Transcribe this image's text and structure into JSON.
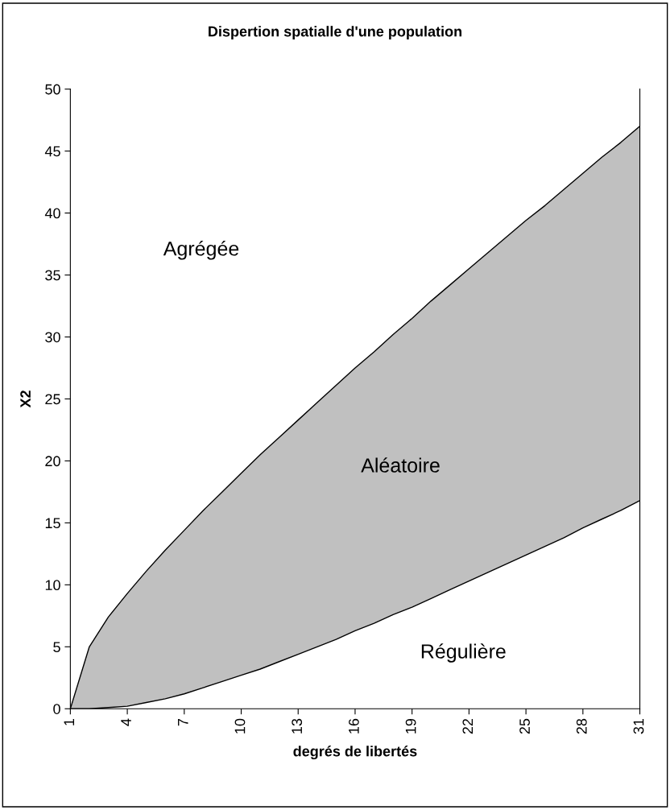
{
  "chart_data": {
    "type": "area",
    "title": "Dispertion spatialle d'une population",
    "xlabel": "degrés de libertés",
    "ylabel": "X2",
    "x": [
      1,
      2,
      3,
      4,
      5,
      6,
      7,
      8,
      9,
      10,
      11,
      12,
      13,
      14,
      15,
      16,
      17,
      18,
      19,
      20,
      21,
      22,
      23,
      24,
      25,
      26,
      27,
      28,
      29,
      30,
      31
    ],
    "series": [
      {
        "color": "#c0c0c0",
        "values": [
          0,
          5.0,
          7.4,
          9.3,
          11.1,
          12.8,
          14.4,
          16.0,
          17.5,
          19.0,
          20.5,
          21.9,
          23.3,
          24.7,
          26.1,
          27.5,
          28.8,
          30.2,
          31.5,
          32.9,
          34.2,
          35.5,
          36.8,
          38.1,
          39.4,
          40.6,
          41.9,
          43.2,
          44.5,
          45.7,
          47.0
        ]
      },
      {
        "color": "#ffffff",
        "values": [
          0,
          0.0,
          0.1,
          0.2,
          0.5,
          0.8,
          1.2,
          1.7,
          2.2,
          2.7,
          3.2,
          3.8,
          4.4,
          5.0,
          5.6,
          6.3,
          6.9,
          7.6,
          8.2,
          8.9,
          9.6,
          10.3,
          11.0,
          11.7,
          12.4,
          13.1,
          13.8,
          14.6,
          15.3,
          16.0,
          16.8
        ]
      }
    ],
    "xlim": [
      1,
      31
    ],
    "xticks": [
      1,
      4,
      7,
      10,
      13,
      16,
      19,
      22,
      25,
      28,
      31
    ],
    "ylim": [
      0,
      50
    ],
    "yticks": [
      0,
      5,
      10,
      15,
      20,
      25,
      30,
      35,
      40,
      45,
      50
    ],
    "annotations": [
      "Agrégée",
      "Aléatoire",
      "Régulière"
    ],
    "grid": false,
    "legend": false
  }
}
